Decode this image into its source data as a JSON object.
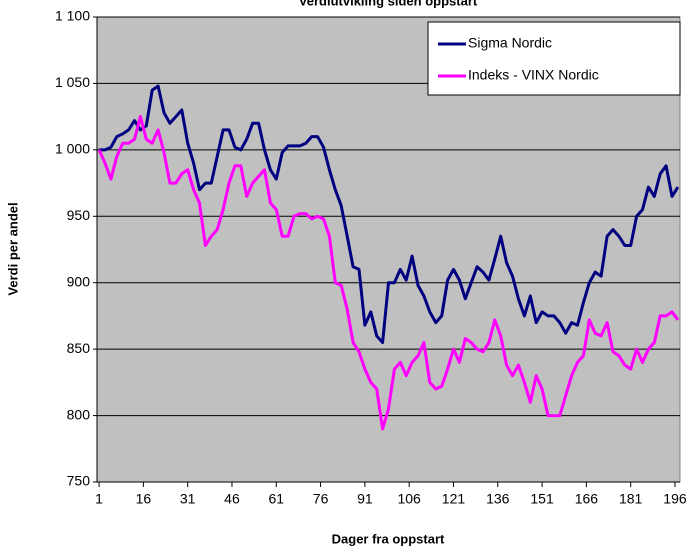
{
  "chart_data": {
    "type": "line",
    "title": "Verdiutvikling siden oppstart",
    "xlabel": "Dager fra oppstart",
    "ylabel": "Verdi per andel",
    "x": [
      1,
      3,
      5,
      7,
      9,
      11,
      13,
      15,
      17,
      19,
      21,
      23,
      25,
      27,
      29,
      31,
      33,
      35,
      37,
      39,
      41,
      43,
      45,
      47,
      49,
      51,
      53,
      55,
      57,
      59,
      61,
      63,
      65,
      67,
      69,
      71,
      73,
      75,
      77,
      79,
      81,
      83,
      85,
      87,
      89,
      91,
      93,
      95,
      97,
      99,
      101,
      103,
      105,
      107,
      109,
      111,
      113,
      115,
      117,
      119,
      121,
      123,
      125,
      127,
      129,
      131,
      133,
      135,
      137,
      139,
      141,
      143,
      145,
      147,
      149,
      151,
      153,
      155,
      157,
      159,
      161,
      163,
      165,
      167,
      169,
      171,
      173,
      175,
      177,
      179,
      181,
      183,
      185,
      187,
      189,
      191,
      193,
      195,
      197
    ],
    "series": [
      {
        "name": "Sigma Nordic",
        "color": "#000080",
        "values": [
          1000,
          1000,
          1002,
          1010,
          1012,
          1015,
          1022,
          1015,
          1018,
          1045,
          1048,
          1028,
          1020,
          1025,
          1030,
          1005,
          990,
          970,
          975,
          975,
          995,
          1015,
          1015,
          1002,
          1000,
          1008,
          1020,
          1020,
          1000,
          985,
          978,
          998,
          1003,
          1003,
          1003,
          1005,
          1010,
          1010,
          1002,
          985,
          970,
          958,
          935,
          912,
          910,
          868,
          878,
          860,
          855,
          900,
          900,
          910,
          902,
          920,
          898,
          890,
          878,
          870,
          875,
          902,
          910,
          902,
          888,
          900,
          912,
          908,
          902,
          918,
          935,
          915,
          905,
          888,
          875,
          890,
          870,
          878,
          875,
          875,
          870,
          862,
          870,
          868,
          885,
          900,
          908,
          905,
          935,
          940,
          935,
          928,
          928,
          950,
          955,
          972,
          965,
          982,
          988,
          965,
          972
        ]
      },
      {
        "name": "Indeks - VINX Nordic",
        "color": "#ff00ff",
        "values": [
          1000,
          990,
          978,
          995,
          1005,
          1005,
          1008,
          1025,
          1008,
          1005,
          1015,
          998,
          975,
          975,
          982,
          985,
          970,
          960,
          928,
          935,
          940,
          955,
          975,
          988,
          988,
          965,
          975,
          980,
          985,
          960,
          955,
          935,
          935,
          950,
          952,
          952,
          948,
          950,
          948,
          935,
          900,
          898,
          880,
          855,
          848,
          835,
          825,
          820,
          790,
          805,
          835,
          840,
          830,
          840,
          845,
          855,
          825,
          820,
          822,
          835,
          850,
          840,
          858,
          855,
          850,
          848,
          855,
          872,
          860,
          838,
          830,
          838,
          825,
          810,
          830,
          820,
          800,
          800,
          800,
          815,
          830,
          840,
          845,
          872,
          862,
          860,
          870,
          848,
          845,
          838,
          835,
          850,
          840,
          850,
          855,
          875,
          875,
          878,
          872
        ]
      }
    ],
    "xlim": [
      0.3,
      197.7
    ],
    "xticks": [
      1,
      16,
      31,
      46,
      61,
      76,
      91,
      106,
      121,
      136,
      151,
      166,
      181,
      196
    ],
    "ylim": [
      750,
      1100
    ],
    "yticks": [
      750,
      800,
      850,
      900,
      950,
      {
        "value": 1000,
        "label": "1 000"
      },
      {
        "value": 1050,
        "label": "1 050"
      },
      {
        "value": 1100,
        "label": "1 100"
      }
    ],
    "grid": true,
    "legend": "top-right"
  }
}
